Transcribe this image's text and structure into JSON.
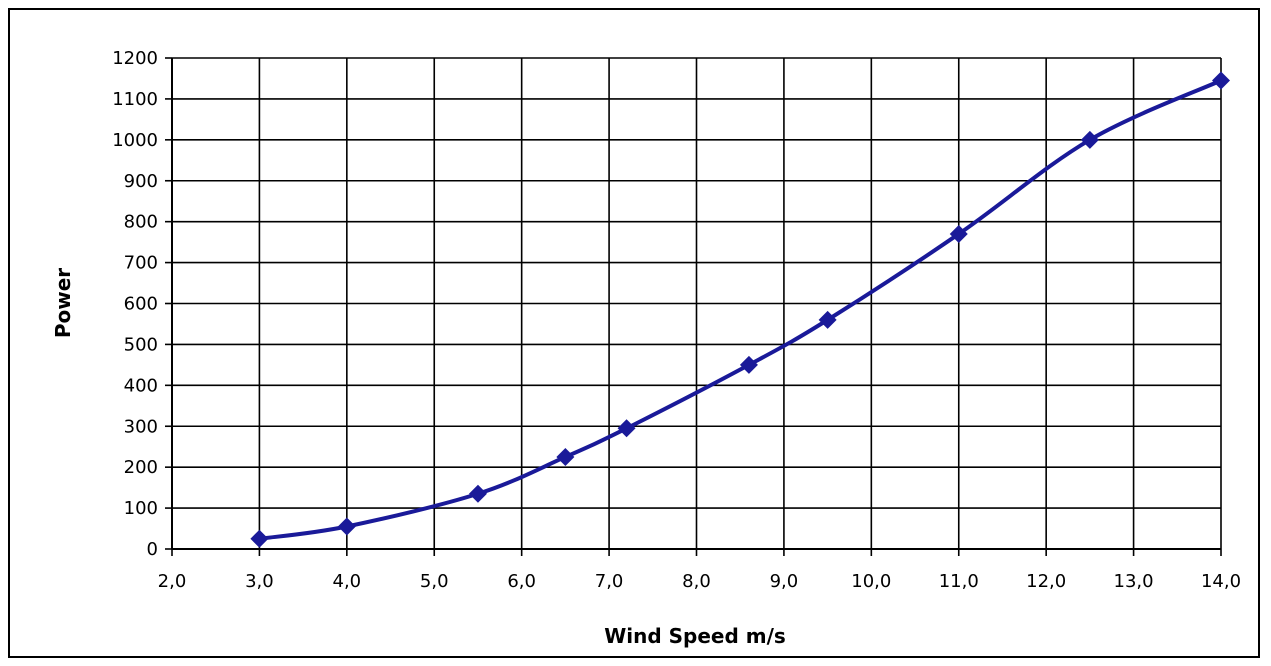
{
  "chart_data": {
    "type": "line",
    "title": "",
    "xlabel": "Wind Speed m/s",
    "ylabel": "Power",
    "xlim": [
      2.0,
      14.0
    ],
    "ylim": [
      0,
      1200
    ],
    "x_ticks": [
      "2,0",
      "3,0",
      "4,0",
      "5,0",
      "6,0",
      "7,0",
      "8,0",
      "9,0",
      "10,0",
      "11,0",
      "12,0",
      "13,0",
      "14,0"
    ],
    "y_ticks": [
      "0",
      "100",
      "200",
      "300",
      "400",
      "500",
      "600",
      "700",
      "800",
      "900",
      "1000",
      "1100",
      "1200"
    ],
    "grid": true,
    "legend": "none",
    "series": [
      {
        "color": "#1a1a99",
        "marker": "diamond",
        "points": [
          {
            "x": 3.0,
            "y": 25
          },
          {
            "x": 4.0,
            "y": 55
          },
          {
            "x": 5.5,
            "y": 135
          },
          {
            "x": 6.5,
            "y": 225
          },
          {
            "x": 7.2,
            "y": 295
          },
          {
            "x": 8.6,
            "y": 450
          },
          {
            "x": 9.5,
            "y": 560
          },
          {
            "x": 11.0,
            "y": 770
          },
          {
            "x": 12.5,
            "y": 1000
          },
          {
            "x": 14.0,
            "y": 1145
          }
        ]
      }
    ]
  }
}
